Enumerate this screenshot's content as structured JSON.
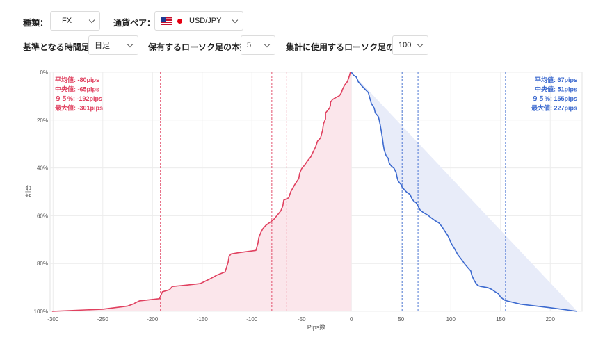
{
  "controls": {
    "type_label": "種類：",
    "type_value": "FX",
    "pair_label": "通貨ペア：",
    "pair_value": "USD/JPY",
    "timeframe_label": "基準となる時間足：",
    "timeframe_value": "日足",
    "hold_label": "保有するローソク足の本数：",
    "hold_value": "5",
    "count_label": "集計に使用するローソク足の本数",
    "count_value": "100"
  },
  "chart_data": {
    "type": "area",
    "xlabel": "Pips数",
    "ylabel": "割合",
    "xlim": [
      -303,
      232
    ],
    "ylim": [
      0,
      100
    ],
    "y_inverted": true,
    "x_ticks": [
      -300,
      -250,
      -200,
      -150,
      -100,
      -50,
      0,
      50,
      100,
      150,
      200
    ],
    "y_ticks": [
      0,
      20,
      40,
      60,
      80,
      100
    ],
    "y_tick_labels": [
      "0%",
      "20%",
      "40%",
      "60%",
      "80%",
      "100%"
    ],
    "grid": true,
    "series": [
      {
        "name": "negative",
        "color": "#e0405f",
        "fill": "#fbe6eb",
        "points": [
          [
            -301,
            100
          ],
          [
            -250,
            99.1
          ],
          [
            -225,
            97.8
          ],
          [
            -220,
            97
          ],
          [
            -213,
            95.6
          ],
          [
            -195,
            94.8
          ],
          [
            -193,
            94.7
          ],
          [
            -190,
            91.8
          ],
          [
            -183,
            91
          ],
          [
            -180,
            89.6
          ],
          [
            -165,
            89
          ],
          [
            -152,
            88.4
          ],
          [
            -143,
            86.6
          ],
          [
            -135,
            84.8
          ],
          [
            -127,
            83.5
          ],
          [
            -124,
            79.5
          ],
          [
            -123,
            77
          ],
          [
            -121,
            76
          ],
          [
            -114,
            75.5
          ],
          [
            -96,
            74.5
          ],
          [
            -94,
            71.5
          ],
          [
            -93,
            69
          ],
          [
            -91,
            67
          ],
          [
            -89,
            65.4
          ],
          [
            -86,
            64
          ],
          [
            -81,
            62.5
          ],
          [
            -78,
            61.5
          ],
          [
            -74,
            59.5
          ],
          [
            -71,
            58
          ],
          [
            -69,
            56
          ],
          [
            -68,
            53.5
          ],
          [
            -63,
            52.5
          ],
          [
            -61,
            50
          ],
          [
            -57,
            47
          ],
          [
            -53,
            44.5
          ],
          [
            -52,
            42.3
          ],
          [
            -50,
            40.3
          ],
          [
            -47,
            38.8
          ],
          [
            -44,
            37
          ],
          [
            -41,
            35.5
          ],
          [
            -39,
            33.8
          ],
          [
            -36,
            31.2
          ],
          [
            -34,
            28.8
          ],
          [
            -31,
            27.5
          ],
          [
            -29,
            24.3
          ],
          [
            -28,
            21.5
          ],
          [
            -26,
            19.5
          ],
          [
            -26,
            17
          ],
          [
            -22,
            15
          ],
          [
            -21,
            13.8
          ],
          [
            -21,
            12.6
          ],
          [
            -19,
            11.4
          ],
          [
            -15,
            10.4
          ],
          [
            -12,
            9.8
          ],
          [
            -10,
            8.5
          ],
          [
            -9,
            7.2
          ],
          [
            -7,
            5.5
          ],
          [
            -4,
            3.9
          ],
          [
            -2,
            1.5
          ],
          [
            -1,
            0
          ]
        ]
      },
      {
        "name": "positive",
        "color": "#3b69cf",
        "fill": "#e8ecf9",
        "points": [
          [
            0,
            0
          ],
          [
            2,
            1.2
          ],
          [
            5,
            2
          ],
          [
            7,
            4
          ],
          [
            10,
            5.5
          ],
          [
            13,
            6.8
          ],
          [
            17,
            8.5
          ],
          [
            18,
            10
          ],
          [
            20,
            13
          ],
          [
            23,
            15
          ],
          [
            24,
            17
          ],
          [
            27,
            18.5
          ],
          [
            28,
            20
          ],
          [
            29,
            22
          ],
          [
            30,
            24.5
          ],
          [
            31,
            27
          ],
          [
            32,
            30
          ],
          [
            33,
            32.5
          ],
          [
            35,
            35
          ],
          [
            37,
            36
          ],
          [
            38,
            38
          ],
          [
            40,
            39.2
          ],
          [
            43,
            40.2
          ],
          [
            45,
            42
          ],
          [
            46,
            44
          ],
          [
            47,
            45.5
          ],
          [
            49,
            46.5
          ],
          [
            50,
            47
          ],
          [
            51,
            48
          ],
          [
            54,
            49.5
          ],
          [
            56,
            50.3
          ],
          [
            59,
            51.1
          ],
          [
            61,
            53
          ],
          [
            63,
            54
          ],
          [
            65,
            54.5
          ],
          [
            67,
            56
          ],
          [
            69,
            57.5
          ],
          [
            70,
            58
          ],
          [
            73,
            58.8
          ],
          [
            77,
            59.8
          ],
          [
            80,
            60.8
          ],
          [
            84,
            62
          ],
          [
            88,
            63
          ],
          [
            91,
            64.5
          ],
          [
            94,
            66.5
          ],
          [
            97,
            68.3
          ],
          [
            99,
            70.2
          ],
          [
            101,
            72
          ],
          [
            104,
            74
          ],
          [
            107,
            76.3
          ],
          [
            111,
            78.4
          ],
          [
            114,
            80.2
          ],
          [
            117,
            81.7
          ],
          [
            120,
            83.1
          ],
          [
            121,
            84.8
          ],
          [
            123,
            86.7
          ],
          [
            125,
            88.1
          ],
          [
            127,
            89.2
          ],
          [
            130,
            89.6
          ],
          [
            133,
            89.8
          ],
          [
            137,
            90.1
          ],
          [
            141,
            90.8
          ],
          [
            144,
            91.7
          ],
          [
            148,
            92.7
          ],
          [
            150,
            94
          ],
          [
            153,
            95
          ],
          [
            155,
            95.5
          ],
          [
            170,
            97
          ],
          [
            200,
            98.5
          ],
          [
            227,
            100
          ]
        ]
      }
    ],
    "reference_lines": [
      {
        "x": -80,
        "color": "#e0405f"
      },
      {
        "x": -65,
        "color": "#e0405f"
      },
      {
        "x": -192,
        "color": "#e0405f"
      },
      {
        "x": 67,
        "color": "#3b69cf"
      },
      {
        "x": 51,
        "color": "#3b69cf"
      },
      {
        "x": 155,
        "color": "#3b69cf"
      }
    ],
    "annotations_left": [
      "平均値: -80pips",
      "中央値: -65pips",
      "９５%: -192pips",
      "最大値: -301pips"
    ],
    "annotations_right": [
      "平均値: 67pips",
      "中央値: 51pips",
      "９５%: 155pips",
      "最大値: 227pips"
    ],
    "colors": {
      "negative": "#e0405f",
      "positive": "#3b69cf"
    }
  }
}
